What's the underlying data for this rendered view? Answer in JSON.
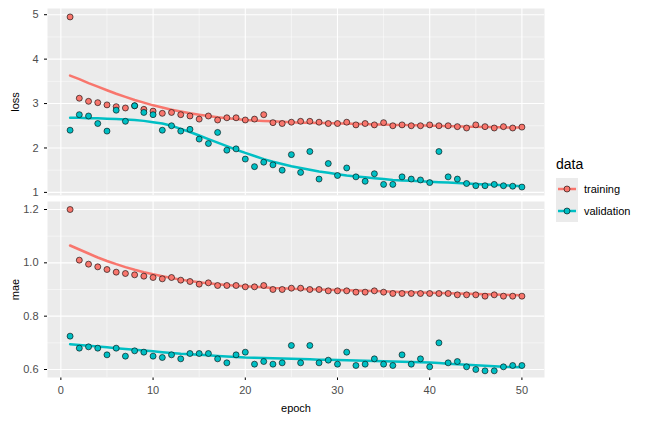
{
  "chart_data": [
    {
      "type": "scatter",
      "ylabel": "loss",
      "legend": "right",
      "legend_title": "data",
      "grid": true,
      "tick_labels": "y",
      "xlim": [
        -1.45,
        52.45
      ],
      "xticks": [
        0,
        10,
        20,
        30,
        40,
        50
      ],
      "ylim": [
        0.93,
        5.14
      ],
      "yticks": [
        1,
        2,
        3,
        4,
        5
      ],
      "x": [
        1,
        2,
        3,
        4,
        5,
        6,
        7,
        8,
        9,
        10,
        11,
        12,
        13,
        14,
        15,
        16,
        17,
        18,
        19,
        20,
        21,
        22,
        23,
        24,
        25,
        26,
        27,
        28,
        29,
        30,
        31,
        32,
        33,
        34,
        35,
        36,
        37,
        38,
        39,
        40,
        41,
        42,
        43,
        44,
        45,
        46,
        47,
        48,
        49,
        50
      ],
      "series": [
        {
          "name": "training",
          "color": "#F8766D",
          "marker": "circle",
          "values": [
            4.95,
            3.12,
            3.05,
            3.02,
            2.97,
            2.93,
            2.9,
            2.95,
            2.87,
            2.83,
            2.78,
            2.8,
            2.75,
            2.72,
            2.65,
            2.72,
            2.63,
            2.68,
            2.68,
            2.63,
            2.65,
            2.75,
            2.57,
            2.55,
            2.58,
            2.6,
            2.6,
            2.58,
            2.55,
            2.55,
            2.58,
            2.52,
            2.55,
            2.52,
            2.57,
            2.5,
            2.52,
            2.5,
            2.5,
            2.52,
            2.5,
            2.5,
            2.48,
            2.45,
            2.52,
            2.48,
            2.45,
            2.48,
            2.45,
            2.47
          ],
          "smooth": [
            3.63,
            3.55,
            3.46,
            3.38,
            3.3,
            3.22,
            3.15,
            3.08,
            3.02,
            2.96,
            2.91,
            2.86,
            2.82,
            2.78,
            2.75,
            2.72,
            2.69,
            2.67,
            2.65,
            2.63,
            2.62,
            2.61,
            2.6,
            2.59,
            2.58,
            2.57,
            2.57,
            2.56,
            2.56,
            2.55,
            2.55,
            2.54,
            2.54,
            2.53,
            2.53,
            2.52,
            2.52,
            2.51,
            2.51,
            2.5,
            2.5,
            2.49,
            2.49,
            2.48,
            2.48,
            2.47,
            2.47,
            2.46,
            2.46,
            2.46
          ]
        },
        {
          "name": "validation",
          "color": "#00BFC4",
          "marker": "circle",
          "values": [
            2.4,
            2.75,
            2.72,
            2.55,
            2.38,
            2.85,
            2.6,
            2.95,
            2.8,
            2.75,
            2.4,
            2.5,
            2.38,
            2.42,
            2.2,
            2.1,
            2.35,
            1.95,
            1.98,
            1.75,
            1.58,
            1.68,
            1.62,
            1.5,
            1.85,
            1.45,
            1.92,
            1.3,
            1.65,
            1.38,
            1.55,
            1.35,
            1.25,
            1.42,
            1.18,
            1.18,
            1.35,
            1.3,
            1.28,
            1.22,
            1.92,
            1.35,
            1.3,
            1.2,
            1.15,
            1.15,
            1.18,
            1.15,
            1.14,
            1.12
          ],
          "smooth": [
            2.68,
            2.68,
            2.67,
            2.67,
            2.66,
            2.65,
            2.64,
            2.63,
            2.61,
            2.58,
            2.55,
            2.5,
            2.43,
            2.36,
            2.28,
            2.2,
            2.12,
            2.04,
            1.96,
            1.89,
            1.82,
            1.75,
            1.69,
            1.64,
            1.59,
            1.55,
            1.51,
            1.47,
            1.44,
            1.41,
            1.38,
            1.36,
            1.34,
            1.32,
            1.3,
            1.28,
            1.27,
            1.26,
            1.25,
            1.24,
            1.23,
            1.22,
            1.21,
            1.2,
            1.19,
            1.18,
            1.17,
            1.16,
            1.15,
            1.14
          ]
        }
      ]
    },
    {
      "type": "scatter",
      "xlabel": "epoch",
      "ylabel": "mae",
      "grid": true,
      "xlim": [
        -1.45,
        52.45
      ],
      "xticks": [
        0,
        10,
        20,
        30,
        40,
        50
      ],
      "ylim": [
        0.57,
        1.23
      ],
      "yticks": [
        0.6,
        0.8,
        {
          "value": 1,
          "label": "1.0"
        },
        1.2
      ],
      "x": [
        1,
        2,
        3,
        4,
        5,
        6,
        7,
        8,
        9,
        10,
        11,
        12,
        13,
        14,
        15,
        16,
        17,
        18,
        19,
        20,
        21,
        22,
        23,
        24,
        25,
        26,
        27,
        28,
        29,
        30,
        31,
        32,
        33,
        34,
        35,
        36,
        37,
        38,
        39,
        40,
        41,
        42,
        43,
        44,
        45,
        46,
        47,
        48,
        49,
        50
      ],
      "series": [
        {
          "name": "training",
          "color": "#F8766D",
          "marker": "circle",
          "values": [
            1.2,
            1.01,
            0.995,
            0.985,
            0.975,
            0.965,
            0.96,
            0.955,
            0.95,
            0.945,
            0.94,
            0.945,
            0.935,
            0.93,
            0.92,
            0.925,
            0.915,
            0.915,
            0.915,
            0.91,
            0.91,
            0.915,
            0.9,
            0.9,
            0.905,
            0.905,
            0.9,
            0.9,
            0.895,
            0.895,
            0.895,
            0.89,
            0.89,
            0.895,
            0.89,
            0.885,
            0.885,
            0.885,
            0.885,
            0.885,
            0.885,
            0.885,
            0.88,
            0.88,
            0.88,
            0.875,
            0.88,
            0.875,
            0.875,
            0.875
          ],
          "smooth": [
            1.065,
            1.05,
            1.035,
            1.02,
            1.007,
            0.995,
            0.984,
            0.974,
            0.965,
            0.957,
            0.95,
            0.943,
            0.937,
            0.932,
            0.927,
            0.923,
            0.92,
            0.917,
            0.914,
            0.912,
            0.91,
            0.908,
            0.906,
            0.905,
            0.903,
            0.902,
            0.901,
            0.9,
            0.899,
            0.898,
            0.897,
            0.896,
            0.895,
            0.894,
            0.893,
            0.892,
            0.891,
            0.89,
            0.889,
            0.888,
            0.887,
            0.886,
            0.885,
            0.884,
            0.883,
            0.882,
            0.881,
            0.88,
            0.879,
            0.878
          ]
        },
        {
          "name": "validation",
          "color": "#00BFC4",
          "marker": "circle",
          "values": [
            0.725,
            0.68,
            0.685,
            0.68,
            0.655,
            0.68,
            0.65,
            0.67,
            0.665,
            0.65,
            0.645,
            0.655,
            0.64,
            0.66,
            0.66,
            0.66,
            0.64,
            0.625,
            0.655,
            0.665,
            0.62,
            0.63,
            0.62,
            0.625,
            0.69,
            0.625,
            0.69,
            0.625,
            0.635,
            0.62,
            0.665,
            0.615,
            0.62,
            0.64,
            0.62,
            0.615,
            0.655,
            0.62,
            0.64,
            0.61,
            0.7,
            0.625,
            0.63,
            0.61,
            0.6,
            0.595,
            0.595,
            0.61,
            0.615,
            0.615
          ],
          "smooth": [
            0.695,
            0.692,
            0.689,
            0.686,
            0.683,
            0.68,
            0.677,
            0.674,
            0.671,
            0.668,
            0.665,
            0.662,
            0.659,
            0.657,
            0.655,
            0.653,
            0.651,
            0.649,
            0.647,
            0.645,
            0.644,
            0.643,
            0.642,
            0.641,
            0.64,
            0.639,
            0.638,
            0.637,
            0.637,
            0.636,
            0.635,
            0.634,
            0.633,
            0.632,
            0.631,
            0.63,
            0.629,
            0.628,
            0.627,
            0.626,
            0.624,
            0.622,
            0.62,
            0.618,
            0.616,
            0.614,
            0.612,
            0.61,
            0.609,
            0.608
          ]
        }
      ]
    }
  ]
}
